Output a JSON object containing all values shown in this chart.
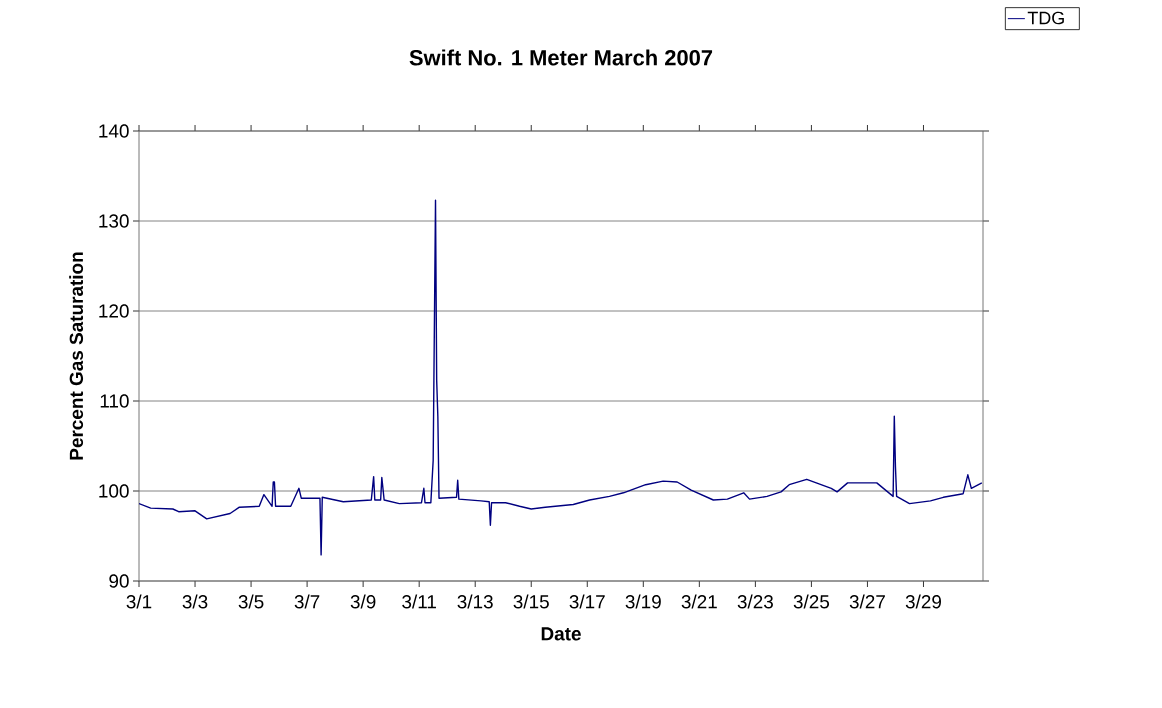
{
  "chart_data": {
    "type": "line",
    "title": "Swift No. 1 Meter March 2007",
    "xlabel": "Date",
    "ylabel": "Percent Gas Saturation",
    "x": [
      "2007-03-01T00:00",
      "2007-03-01T10:00",
      "2007-03-02T05:00",
      "2007-03-02T10:00",
      "2007-03-03T00:00",
      "2007-03-03T10:00",
      "2007-03-04T06:00",
      "2007-03-04T14:00",
      "2007-03-05T07:00",
      "2007-03-05T11:00",
      "2007-03-05T18:00",
      "2007-03-05T19:00",
      "2007-03-05T20:00",
      "2007-03-05T21:00",
      "2007-03-06T10:00",
      "2007-03-06T17:00",
      "2007-03-06T19:00",
      "2007-03-07T11:00",
      "2007-03-07T12:00",
      "2007-03-07T13:00",
      "2007-03-08T07:00",
      "2007-03-09T07:00",
      "2007-03-09T09:00",
      "2007-03-09T10:00",
      "2007-03-09T15:00",
      "2007-03-09T16:00",
      "2007-03-09T18:00",
      "2007-03-10T07:00",
      "2007-03-11T02:00",
      "2007-03-11T04:00",
      "2007-03-11T05:00",
      "2007-03-11T10:00",
      "2007-03-11T12:00",
      "2007-03-11T14:00",
      "2007-03-11T15:00",
      "2007-03-11T16:00",
      "2007-03-11T17:00",
      "2007-03-12T08:00",
      "2007-03-12T09:00",
      "2007-03-12T10:00",
      "2007-03-13T05:00",
      "2007-03-13T12:00",
      "2007-03-13T13:00",
      "2007-03-13T14:00",
      "2007-03-14T02:00",
      "2007-03-14T14:00",
      "2007-03-15T00:00",
      "2007-03-15T12:00",
      "2007-03-16T12:00",
      "2007-03-17T02:00",
      "2007-03-17T19:00",
      "2007-03-18T07:00",
      "2007-03-19T02:00",
      "2007-03-19T17:00",
      "2007-03-20T05:00",
      "2007-03-20T17:00",
      "2007-03-21T12:00",
      "2007-03-22T00:00",
      "2007-03-22T14:00",
      "2007-03-22T19:00",
      "2007-03-23T10:00",
      "2007-03-23T22:00",
      "2007-03-24T05:00",
      "2007-03-24T20:00",
      "2007-03-25T17:00",
      "2007-03-25T22:00",
      "2007-03-26T07:00",
      "2007-03-27T08:00",
      "2007-03-27T22:00",
      "2007-03-27T23:00",
      "2007-03-28T00:00",
      "2007-03-28T01:00",
      "2007-03-28T12:00",
      "2007-03-29T06:00",
      "2007-03-29T17:00",
      "2007-03-30T10:00",
      "2007-03-30T14:00",
      "2007-03-30T17:00",
      "2007-03-31T02:00"
    ],
    "series": [
      {
        "name": "TDG",
        "color": "#000080",
        "values": [
          98.6,
          98.1,
          98.0,
          97.7,
          97.8,
          96.9,
          97.5,
          98.2,
          98.3,
          99.6,
          98.3,
          101.0,
          101.0,
          98.3,
          98.3,
          100.3,
          99.2,
          99.2,
          92.9,
          99.3,
          98.8,
          99.0,
          101.6,
          99.0,
          99.0,
          101.5,
          99.0,
          98.6,
          98.7,
          100.3,
          98.7,
          98.7,
          103.4,
          132.3,
          112.3,
          108.3,
          99.2,
          99.3,
          101.2,
          99.1,
          98.9,
          98.8,
          96.2,
          98.7,
          98.7,
          98.3,
          98.0,
          98.2,
          98.5,
          99.0,
          99.4,
          99.8,
          100.7,
          101.1,
          101.0,
          100.1,
          99.0,
          99.1,
          99.8,
          99.1,
          99.4,
          99.9,
          100.7,
          101.3,
          100.3,
          99.9,
          100.9,
          100.9,
          99.4,
          108.3,
          102.7,
          99.4,
          98.6,
          98.9,
          99.3,
          99.7,
          101.8,
          100.3,
          100.9
        ]
      }
    ],
    "xlim": [
      "2007-03-01",
      "2007-03-31T03:00"
    ],
    "xticks": [
      {
        "value": "2007-03-01",
        "label": "3/1"
      },
      {
        "value": "2007-03-03",
        "label": "3/3"
      },
      {
        "value": "2007-03-05",
        "label": "3/5"
      },
      {
        "value": "2007-03-07",
        "label": "3/7"
      },
      {
        "value": "2007-03-09",
        "label": "3/9"
      },
      {
        "value": "2007-03-11",
        "label": "3/11"
      },
      {
        "value": "2007-03-13",
        "label": "3/13"
      },
      {
        "value": "2007-03-15",
        "label": "3/15"
      },
      {
        "value": "2007-03-17",
        "label": "3/17"
      },
      {
        "value": "2007-03-19",
        "label": "3/19"
      },
      {
        "value": "2007-03-21",
        "label": "3/21"
      },
      {
        "value": "2007-03-23",
        "label": "3/23"
      },
      {
        "value": "2007-03-25",
        "label": "3/25"
      },
      {
        "value": "2007-03-27",
        "label": "3/27"
      },
      {
        "value": "2007-03-29",
        "label": "3/29"
      }
    ],
    "ylim": [
      90,
      140
    ],
    "yticks": [
      90,
      100,
      110,
      120,
      130,
      140
    ],
    "grid": "y",
    "legend": "top right"
  }
}
